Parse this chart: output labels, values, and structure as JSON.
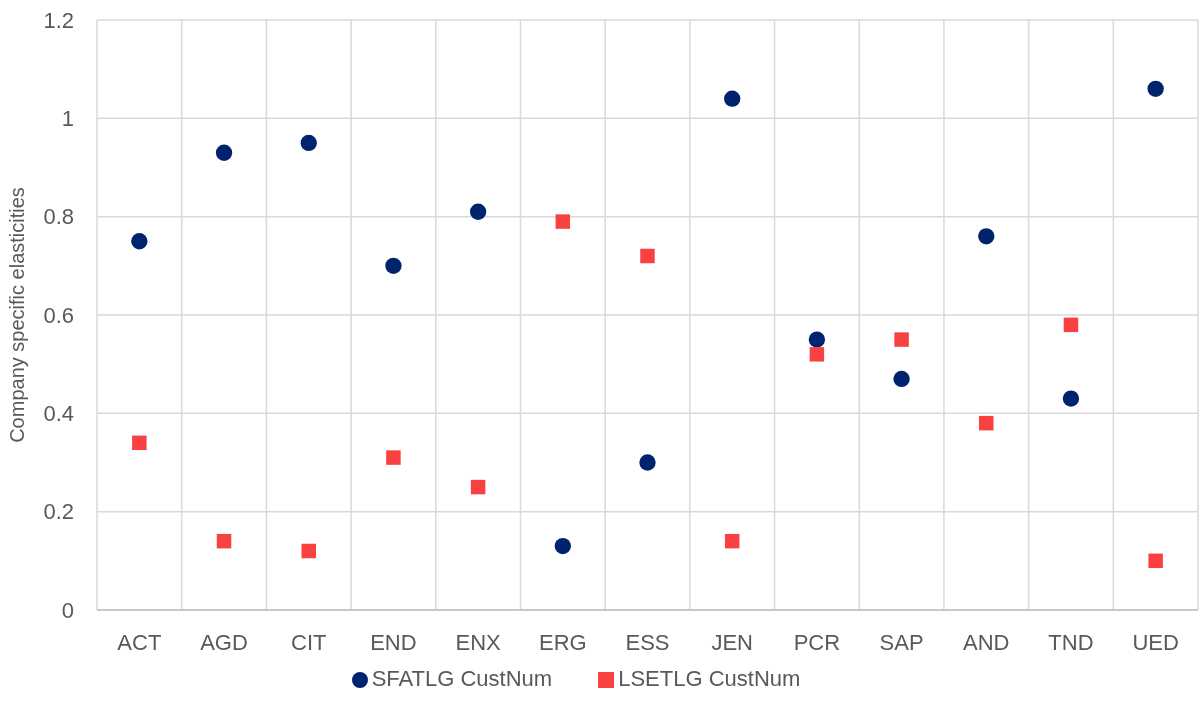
{
  "chart_data": {
    "type": "scatter",
    "ylabel": "Company specific elasticities",
    "categories": [
      "ACT",
      "AGD",
      "CIT",
      "END",
      "ENX",
      "ERG",
      "ESS",
      "JEN",
      "PCR",
      "SAP",
      "AND",
      "TND",
      "UED"
    ],
    "series": [
      {
        "name": "SFATLG CustNum",
        "color": "#00236e",
        "marker": "circle",
        "values": [
          0.75,
          0.93,
          0.95,
          0.7,
          0.81,
          0.13,
          0.3,
          1.04,
          0.55,
          0.47,
          0.76,
          0.43,
          1.06
        ]
      },
      {
        "name": "LSETLG CustNum",
        "color": "#f94141",
        "marker": "square",
        "values": [
          0.34,
          0.14,
          0.12,
          0.31,
          0.25,
          0.79,
          0.72,
          0.14,
          0.52,
          0.55,
          0.38,
          0.58,
          0.1
        ]
      }
    ],
    "ylim": [
      0,
      1.2
    ],
    "yticks": [
      0,
      0.2,
      0.4,
      0.6,
      0.8,
      1,
      1.2
    ],
    "grid": true,
    "legend": "bottom"
  }
}
